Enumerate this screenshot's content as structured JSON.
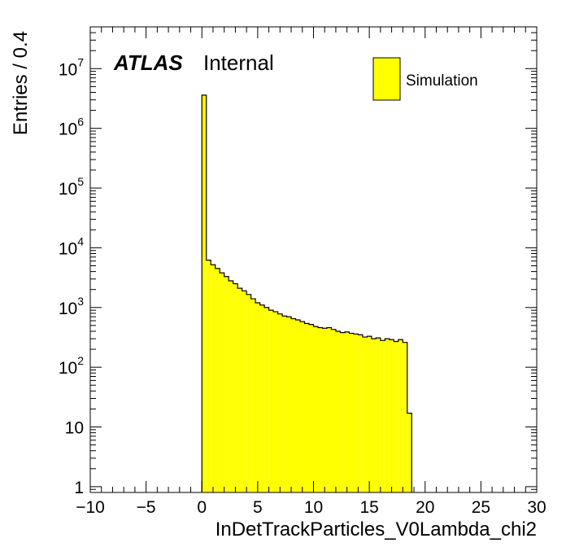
{
  "chart_data": {
    "type": "bar",
    "experiment": "ATLAS",
    "label": "Internal",
    "xlabel": "InDetTrackParticles_V0Lambda_chi2",
    "ylabel": "Entries / 0.4",
    "xlim": [
      -10,
      30
    ],
    "ylim": [
      0.8,
      50000000
    ],
    "yscale": "log",
    "grid": false,
    "legend": {
      "position": "top-right",
      "entries": [
        {
          "name": "Simulation",
          "color": "#ffff00"
        }
      ]
    },
    "x_ticks": [
      -10,
      -5,
      0,
      5,
      10,
      15,
      20,
      25,
      30
    ],
    "x_tick_labels": [
      "−10",
      "−5",
      "0",
      "5",
      "10",
      "15",
      "20",
      "25",
      "30"
    ],
    "y_ticks": [
      {
        "value": 1,
        "base": "1",
        "exp": ""
      },
      {
        "value": 10,
        "base": "10",
        "exp": ""
      },
      {
        "value": 100,
        "base": "10",
        "exp": "2"
      },
      {
        "value": 1000,
        "base": "10",
        "exp": "3"
      },
      {
        "value": 10000,
        "base": "10",
        "exp": "4"
      },
      {
        "value": 100000,
        "base": "10",
        "exp": "5"
      },
      {
        "value": 1000000,
        "base": "10",
        "exp": "6"
      },
      {
        "value": 10000000,
        "base": "10",
        "exp": "7"
      }
    ],
    "bin_width": 0.4,
    "fill_color": "#ffff00",
    "line_color": "#000000",
    "series": [
      {
        "name": "Simulation",
        "x_low": [
          0.0,
          0.4,
          0.8,
          1.2,
          1.6,
          2.0,
          2.4,
          2.8,
          3.2,
          3.6,
          4.0,
          4.4,
          4.8,
          5.2,
          5.6,
          6.0,
          6.4,
          6.8,
          7.2,
          7.6,
          8.0,
          8.4,
          8.8,
          9.2,
          9.6,
          10.0,
          10.4,
          10.8,
          11.2,
          11.6,
          12.0,
          12.4,
          12.8,
          13.2,
          13.6,
          14.0,
          14.4,
          14.8,
          15.2,
          15.6,
          16.0,
          16.4,
          16.8,
          17.2,
          17.6,
          18.0,
          18.4
        ],
        "values": [
          3600000,
          6200,
          5200,
          4500,
          3800,
          3300,
          2800,
          2500,
          2100,
          1900,
          1650,
          1400,
          1200,
          1100,
          1000,
          900,
          850,
          780,
          720,
          700,
          650,
          620,
          580,
          540,
          520,
          480,
          460,
          450,
          460,
          430,
          400,
          380,
          390,
          370,
          360,
          350,
          320,
          330,
          300,
          310,
          280,
          300,
          290,
          270,
          290,
          260,
          17
        ]
      }
    ]
  }
}
